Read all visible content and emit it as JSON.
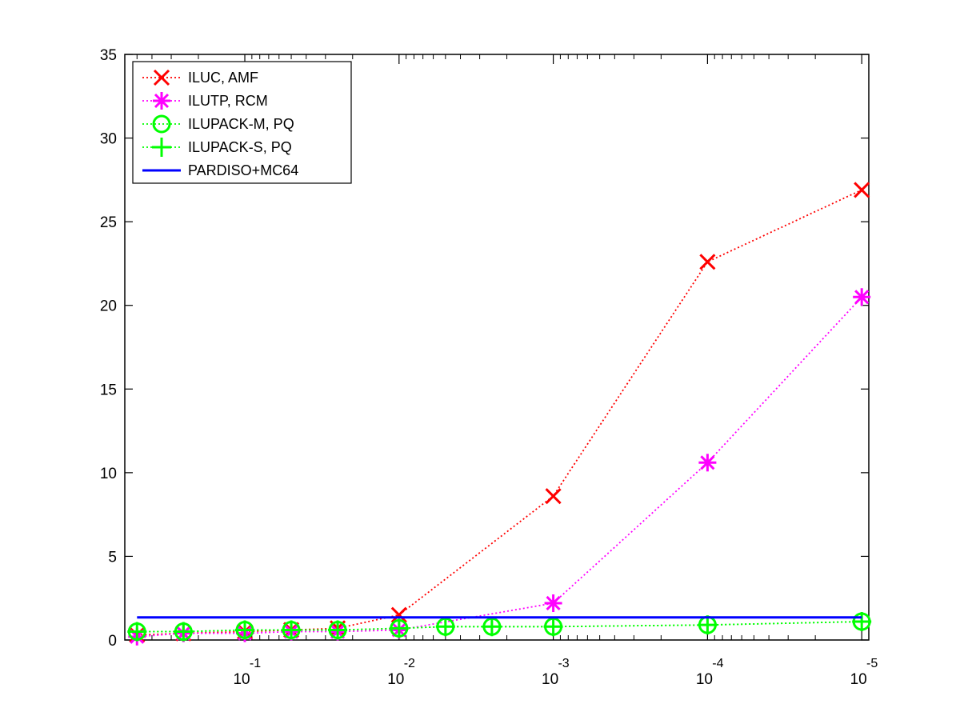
{
  "chart_data": {
    "type": "line",
    "x_scale": "log",
    "x_direction": "decreasing",
    "xlim": [
      0.6,
      9e-06
    ],
    "ylim": [
      0,
      35
    ],
    "grid": false,
    "legend_position": "top-left",
    "title": "",
    "xlabel": "",
    "ylabel": "",
    "y_ticks": [
      "0",
      "5",
      "10",
      "15",
      "20",
      "25",
      "30",
      "35"
    ],
    "x_ticks": [
      {
        "base": "10",
        "exp": "-1",
        "value": 0.1
      },
      {
        "base": "10",
        "exp": "-2",
        "value": 0.01
      },
      {
        "base": "10",
        "exp": "-3",
        "value": 0.001
      },
      {
        "base": "10",
        "exp": "-4",
        "value": 0.0001
      },
      {
        "base": "10",
        "exp": "-5",
        "value": 1e-05
      }
    ],
    "series": [
      {
        "name": "ILUC, AMF",
        "color": "#ff0000",
        "line": "dotted",
        "marker": "x",
        "x": [
          0.5,
          0.25,
          0.1,
          0.05,
          0.025,
          0.01,
          0.001,
          0.0001,
          1e-05
        ],
        "y": [
          0.3,
          0.4,
          0.5,
          0.6,
          0.7,
          1.5,
          8.6,
          22.6,
          26.9
        ]
      },
      {
        "name": "ILUTP, RCM",
        "color": "#ff00ff",
        "line": "dotted",
        "marker": "asterisk",
        "x": [
          0.5,
          0.25,
          0.1,
          0.05,
          0.025,
          0.01,
          0.001,
          0.0001,
          1e-05
        ],
        "y": [
          0.2,
          0.4,
          0.4,
          0.5,
          0.5,
          0.6,
          2.2,
          10.6,
          20.5
        ]
      },
      {
        "name": "ILUPACK-M, PQ",
        "color": "#00ff00",
        "line": "dotted",
        "marker": "circle",
        "x": [
          0.5,
          0.25,
          0.1,
          0.05,
          0.025,
          0.01,
          0.005,
          0.0025,
          0.001,
          0.0001,
          1e-05
        ],
        "y": [
          0.5,
          0.5,
          0.6,
          0.6,
          0.6,
          0.7,
          0.8,
          0.8,
          0.8,
          0.9,
          1.1
        ]
      },
      {
        "name": "ILUPACK-S, PQ",
        "color": "#00ff00",
        "line": "dotted",
        "marker": "plus",
        "x": [
          0.5,
          0.25,
          0.1,
          0.05,
          0.025,
          0.01,
          0.005,
          0.0025,
          0.001,
          0.0001,
          1e-05
        ],
        "y": [
          0.5,
          0.5,
          0.6,
          0.6,
          0.6,
          0.7,
          0.8,
          0.8,
          0.8,
          0.9,
          1.1
        ]
      },
      {
        "name": "PARDISO+MC64",
        "color": "#0000ff",
        "line": "solid",
        "marker": "none",
        "x": [
          0.5,
          1e-05
        ],
        "y": [
          1.35,
          1.35
        ]
      }
    ]
  }
}
